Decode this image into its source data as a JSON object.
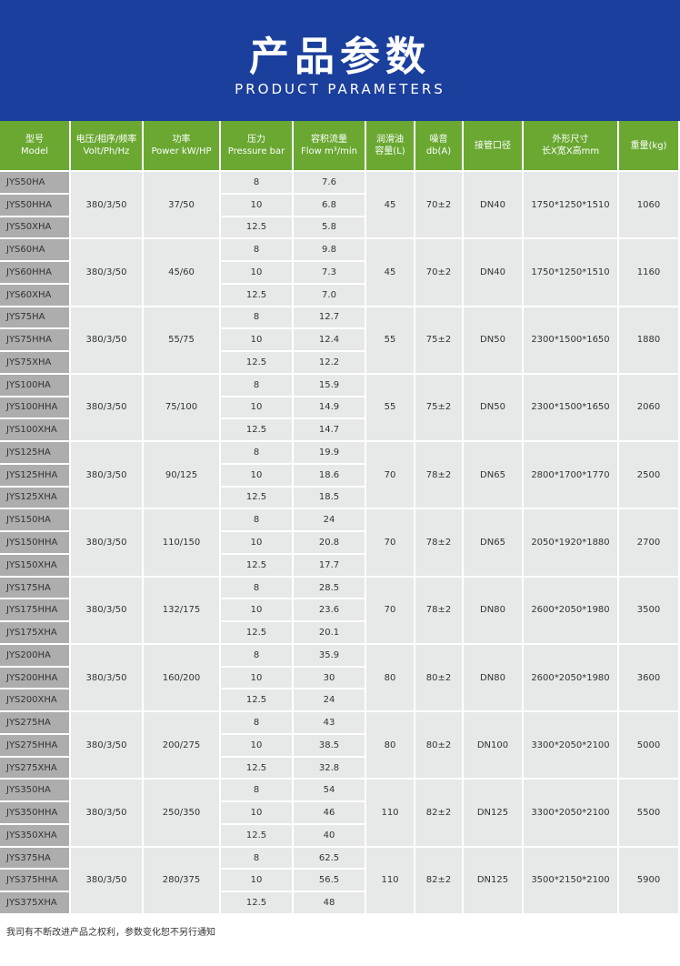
{
  "header": {
    "title": "产品参数",
    "subtitle": "PRODUCT PARAMETERS"
  },
  "table": {
    "columns": [
      [
        "型号",
        "Model"
      ],
      [
        "电压/相序/频率",
        "Volt/Ph/Hz"
      ],
      [
        "功率",
        "Power kW/HP"
      ],
      [
        "压力",
        "Pressure bar"
      ],
      [
        "容积流量",
        "Flow m³/min"
      ],
      [
        "润滑油",
        "容量(L)"
      ],
      [
        "噪音",
        "db(A)"
      ],
      [
        "接管口径"
      ],
      [
        "外形尺寸",
        "长X宽X高mm"
      ],
      [
        "重量(kg)"
      ]
    ],
    "groups": [
      {
        "models": [
          "JYS50HA",
          "JYS50HHA",
          "JYS50XHA"
        ],
        "voltage": "380/3/50",
        "power": "37/50",
        "pressure": [
          "8",
          "10",
          "12.5"
        ],
        "flow": [
          "7.6",
          "6.8",
          "5.8"
        ],
        "oil": "45",
        "noise": "70±2",
        "pipe": "DN40",
        "dims": "1750*1250*1510",
        "weight": "1060"
      },
      {
        "models": [
          "JYS60HA",
          "JYS60HHA",
          "JYS60XHA"
        ],
        "voltage": "380/3/50",
        "power": "45/60",
        "pressure": [
          "8",
          "10",
          "12.5"
        ],
        "flow": [
          "9.8",
          "7.3",
          "7.0"
        ],
        "oil": "45",
        "noise": "70±2",
        "pipe": "DN40",
        "dims": "1750*1250*1510",
        "weight": "1160"
      },
      {
        "models": [
          "JYS75HA",
          "JYS75HHA",
          "JYS75XHA"
        ],
        "voltage": "380/3/50",
        "power": "55/75",
        "pressure": [
          "8",
          "10",
          "12.5"
        ],
        "flow": [
          "12.7",
          "12.4",
          "12.2"
        ],
        "oil": "55",
        "noise": "75±2",
        "pipe": "DN50",
        "dims": "2300*1500*1650",
        "weight": "1880"
      },
      {
        "models": [
          "JYS100HA",
          "JYS100HHA",
          "JYS100XHA"
        ],
        "voltage": "380/3/50",
        "power": "75/100",
        "pressure": [
          "8",
          "10",
          "12.5"
        ],
        "flow": [
          "15.9",
          "14.9",
          "14.7"
        ],
        "oil": "55",
        "noise": "75±2",
        "pipe": "DN50",
        "dims": "2300*1500*1650",
        "weight": "2060"
      },
      {
        "models": [
          "JYS125HA",
          "JYS125HHA",
          "JYS125XHA"
        ],
        "voltage": "380/3/50",
        "power": "90/125",
        "pressure": [
          "8",
          "10",
          "12.5"
        ],
        "flow": [
          "19.9",
          "18.6",
          "18.5"
        ],
        "oil": "70",
        "noise": "78±2",
        "pipe": "DN65",
        "dims": "2800*1700*1770",
        "weight": "2500"
      },
      {
        "models": [
          "JYS150HA",
          "JYS150HHA",
          "JYS150XHA"
        ],
        "voltage": "380/3/50",
        "power": "110/150",
        "pressure": [
          "8",
          "10",
          "12.5"
        ],
        "flow": [
          "24",
          "20.8",
          "17.7"
        ],
        "oil": "70",
        "noise": "78±2",
        "pipe": "DN65",
        "dims": "2050*1920*1880",
        "weight": "2700"
      },
      {
        "models": [
          "JYS175HA",
          "JYS175HHA",
          "JYS175XHA"
        ],
        "voltage": "380/3/50",
        "power": "132/175",
        "pressure": [
          "8",
          "10",
          "12.5"
        ],
        "flow": [
          "28.5",
          "23.6",
          "20.1"
        ],
        "oil": "70",
        "noise": "78±2",
        "pipe": "DN80",
        "dims": "2600*2050*1980",
        "weight": "3500"
      },
      {
        "models": [
          "JYS200HA",
          "JYS200HHA",
          "JYS200XHA"
        ],
        "voltage": "380/3/50",
        "power": "160/200",
        "pressure": [
          "8",
          "10",
          "12.5"
        ],
        "flow": [
          "35.9",
          "30",
          "24"
        ],
        "oil": "80",
        "noise": "80±2",
        "pipe": "DN80",
        "dims": "2600*2050*1980",
        "weight": "3600"
      },
      {
        "models": [
          "JYS275HA",
          "JYS275HHA",
          "JYS275XHA"
        ],
        "voltage": "380/3/50",
        "power": "200/275",
        "pressure": [
          "8",
          "10",
          "12.5"
        ],
        "flow": [
          "43",
          "38.5",
          "32.8"
        ],
        "oil": "80",
        "noise": "80±2",
        "pipe": "DN100",
        "dims": "3300*2050*2100",
        "weight": "5000"
      },
      {
        "models": [
          "JYS350HA",
          "JYS350HHA",
          "JYS350XHA"
        ],
        "voltage": "380/3/50",
        "power": "250/350",
        "pressure": [
          "8",
          "10",
          "12.5"
        ],
        "flow": [
          "54",
          "46",
          "40"
        ],
        "oil": "110",
        "noise": "82±2",
        "pipe": "DN125",
        "dims": "3300*2050*2100",
        "weight": "5500"
      },
      {
        "models": [
          "JYS375HA",
          "JYS375HHA",
          "JYS375XHA"
        ],
        "voltage": "380/3/50",
        "power": "280/375",
        "pressure": [
          "8",
          "10",
          "12.5"
        ],
        "flow": [
          "62.5",
          "56.5",
          "48"
        ],
        "oil": "110",
        "noise": "82±2",
        "pipe": "DN125",
        "dims": "3500*2150*2100",
        "weight": "5900"
      }
    ]
  },
  "footer": "我司有不断改进产品之权利，参数变化恕不另行通知"
}
